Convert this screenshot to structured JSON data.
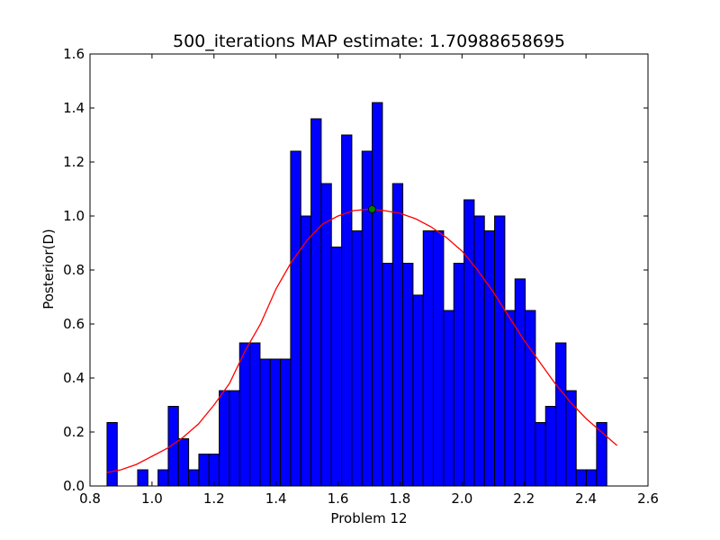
{
  "chart_data": {
    "type": "bar",
    "title": "500_iterations MAP estimate: 1.70988658695",
    "xlabel": "Problem 12",
    "ylabel": "Posterior(D)",
    "xlim": [
      0.8,
      2.6
    ],
    "ylim": [
      0.0,
      1.6
    ],
    "xticks": [
      0.8,
      1.0,
      1.2,
      1.4,
      1.6,
      1.8,
      2.0,
      2.2,
      2.4,
      2.6
    ],
    "xtick_labels": [
      "0.8",
      "1.0",
      "1.2",
      "1.4",
      "1.6",
      "1.8",
      "2.0",
      "2.2",
      "2.4",
      "2.6"
    ],
    "yticks": [
      0.0,
      0.2,
      0.4,
      0.6,
      0.8,
      1.0,
      1.2,
      1.4,
      1.6
    ],
    "ytick_labels": [
      "0.0",
      "0.2",
      "0.4",
      "0.6",
      "0.8",
      "1.0",
      "1.2",
      "1.4",
      "1.6"
    ],
    "grid": false,
    "histogram": {
      "bin_start": 0.855,
      "bin_width": 0.0329,
      "densities": [
        0.235,
        0.0,
        0.0,
        0.06,
        0.0,
        0.06,
        0.295,
        0.175,
        0.06,
        0.118,
        0.118,
        0.353,
        0.353,
        0.53,
        0.53,
        0.47,
        0.47,
        0.47,
        1.24,
        1.0,
        1.36,
        1.12,
        0.885,
        1.3,
        0.945,
        1.24,
        1.42,
        0.825,
        1.12,
        0.825,
        0.707,
        0.945,
        0.945,
        0.65,
        0.825,
        1.06,
        1.0,
        0.945,
        1.0,
        0.65,
        0.767,
        0.65,
        0.235,
        0.295,
        0.53,
        0.353,
        0.06,
        0.06,
        0.235
      ],
      "color": "#0000ff"
    },
    "fit_curve": {
      "x": [
        0.855,
        0.9,
        0.95,
        1.0,
        1.05,
        1.1,
        1.15,
        1.2,
        1.25,
        1.3,
        1.35,
        1.4,
        1.45,
        1.5,
        1.55,
        1.6,
        1.65,
        1.7,
        1.75,
        1.8,
        1.85,
        1.9,
        1.95,
        2.0,
        2.05,
        2.1,
        2.15,
        2.2,
        2.25,
        2.3,
        2.35,
        2.4,
        2.45,
        2.5
      ],
      "y": [
        0.05,
        0.06,
        0.08,
        0.11,
        0.14,
        0.18,
        0.23,
        0.3,
        0.38,
        0.5,
        0.6,
        0.73,
        0.83,
        0.91,
        0.97,
        1.0,
        1.02,
        1.025,
        1.02,
        1.01,
        0.99,
        0.96,
        0.92,
        0.87,
        0.8,
        0.72,
        0.63,
        0.54,
        0.46,
        0.38,
        0.31,
        0.25,
        0.2,
        0.15
      ],
      "color": "#ff0000"
    },
    "map_point": {
      "x": 1.70988658695,
      "y": 1.025,
      "color": "#008000"
    }
  }
}
